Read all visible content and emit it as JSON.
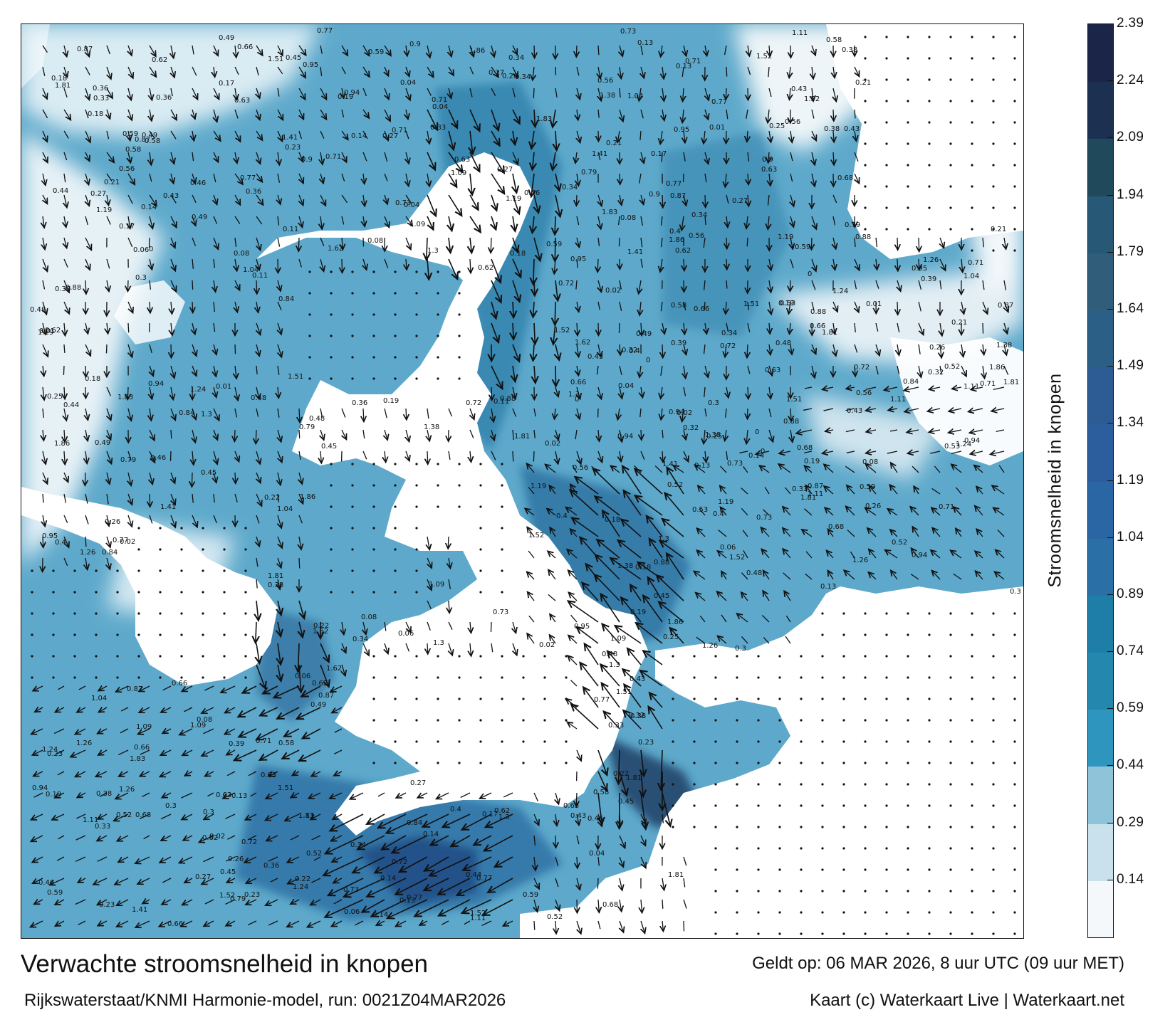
{
  "title": "Verwachte stroomsnelheid in knopen",
  "subtitle": "Rijkswaterstaat/KNMI Harmonie-model, run: 0021Z04MAR2026",
  "valid_time": "Geldt op: 06 MAR 2026, 8 uur UTC (09 uur MET)",
  "credit": "Kaart (c) Waterkaart Live | Waterkaart.net",
  "colorbar": {
    "label": "Stroomsnelheid in knopen",
    "ticks": [
      "0.14",
      "0.29",
      "0.44",
      "0.59",
      "0.74",
      "0.89",
      "1.04",
      "1.19",
      "1.34",
      "1.49",
      "1.64",
      "1.79",
      "1.94",
      "2.09",
      "2.24",
      "2.39"
    ],
    "colors": [
      "#f4f8fb",
      "#c9e1ec",
      "#8fc3da",
      "#2e95be",
      "#2488ae",
      "#1f7ea8",
      "#2a6fa6",
      "#2a66a4",
      "#2c5e9e",
      "#2d5c94",
      "#2c5f86",
      "#2f5d7a",
      "#275876",
      "#21495c",
      "#1c3152",
      "#1a2548"
    ]
  },
  "map": {
    "sample_labels": [
      "0.34",
      "0.11",
      "0.23",
      "0.13",
      "0.21",
      "0.19",
      "0.04",
      "0.3",
      "0.63",
      "0.46",
      "0.43",
      "0.66",
      "0.49",
      "0.36",
      "0.26",
      "0.14",
      "0.18",
      "0.08",
      "0",
      "0.01",
      "0.77",
      "0.79",
      "0.94",
      "1.09",
      "1.11",
      "0.72",
      "0.84",
      "0.87",
      "0.53",
      "0.4",
      "0.39",
      "0.38",
      "0.56",
      "0.62",
      "0.27",
      "0.33",
      "0.45",
      "0.58",
      "0.71",
      "0.88",
      "1.04",
      "1.26",
      "1.41",
      "1.62",
      "1.83",
      "1.81",
      "1.86",
      "1.52",
      "1.38",
      "1.24",
      "0.95",
      "0.68",
      "0.52",
      "0.48",
      "0.17",
      "0.06",
      "0.02",
      "0.22",
      "0.25",
      "0.32",
      "0.44",
      "0.9",
      "1.19",
      "1.3",
      "1.51",
      "0.73",
      "0.59"
    ]
  }
}
